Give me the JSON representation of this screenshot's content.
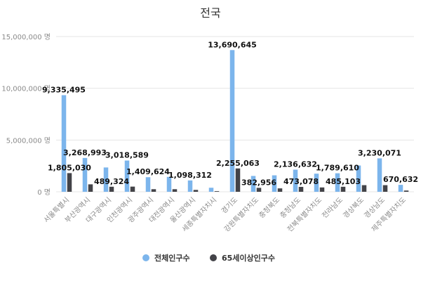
{
  "chart_data": {
    "type": "bar",
    "title": "전국",
    "unit": "명",
    "ylim": [
      0,
      15000000
    ],
    "yticks": [
      0,
      5000000,
      10000000,
      15000000
    ],
    "ytick_labels": [
      "0 명",
      "5,000,000 명",
      "10,000,000 명",
      "15,000,000 명"
    ],
    "grid": true,
    "legend_position": "bottom",
    "categories": [
      "서울특별시",
      "부산광역시",
      "대구광역시",
      "인천광역시",
      "광주광역시",
      "대전광역시",
      "울산광역시",
      "세종특별자치시",
      "경기도",
      "강원특별자치도",
      "충청북도",
      "충청남도",
      "전북특별자치도",
      "전라남도",
      "경상북도",
      "경상남도",
      "제주특별자치도"
    ],
    "series": [
      {
        "name": "전체인구수",
        "color": "#7cb5ec",
        "values": [
          9335495,
          3268993,
          2350000,
          3018589,
          1409624,
          1440000,
          1098312,
          390000,
          13690645,
          1530000,
          1590000,
          2136632,
          1750000,
          1789610,
          2540000,
          3230071,
          670632
        ],
        "labels": [
          "9,335,495",
          "3,268,993",
          "",
          "3,018,589",
          "1,409,624",
          "",
          "1,098,312",
          "",
          "13,690,645",
          "",
          "",
          "2,136,632",
          "",
          "1,789,610",
          "",
          "3,230,071",
          "670,632"
        ]
      },
      {
        "name": "65세이상인구수",
        "color": "#434348",
        "values": [
          1805030,
          720000,
          489324,
          500000,
          250000,
          250000,
          180000,
          60000,
          2255063,
          382956,
          330000,
          473078,
          420000,
          485103,
          640000,
          640000,
          120000
        ],
        "labels": [
          "1,805,030",
          "",
          "489,324",
          "",
          "",
          "",
          "",
          "",
          "2,255,063",
          "382,956",
          "",
          "473,078",
          "",
          "485,103",
          "",
          "",
          ""
        ]
      }
    ]
  }
}
